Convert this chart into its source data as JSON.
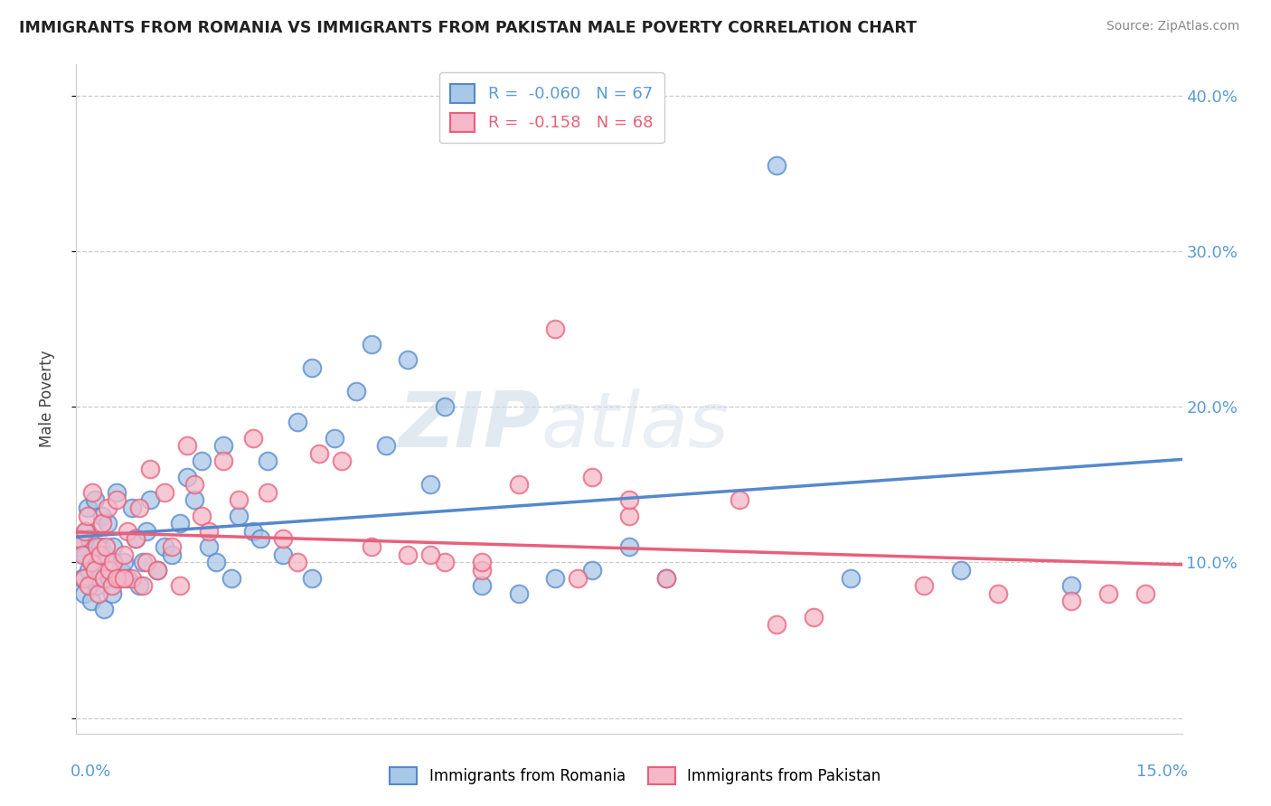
{
  "title": "IMMIGRANTS FROM ROMANIA VS IMMIGRANTS FROM PAKISTAN MALE POVERTY CORRELATION CHART",
  "source": "Source: ZipAtlas.com",
  "ylabel": "Male Poverty",
  "xlim": [
    0.0,
    15.0
  ],
  "ylim": [
    -1.0,
    42.0
  ],
  "yticks": [
    0.0,
    10.0,
    20.0,
    30.0,
    40.0
  ],
  "legend_romania": "Immigrants from Romania",
  "legend_pakistan": "Immigrants from Pakistan",
  "R_romania": -0.06,
  "N_romania": 67,
  "R_pakistan": -0.158,
  "N_pakistan": 68,
  "color_romania": "#a8c8e8",
  "color_pakistan": "#f4b8c8",
  "color_line_romania": "#5588cc",
  "color_line_pakistan": "#e8607a",
  "watermark_zip": "ZIP",
  "watermark_atlas": "atlas",
  "romania_x": [
    0.05,
    0.08,
    0.1,
    0.12,
    0.13,
    0.15,
    0.17,
    0.18,
    0.2,
    0.22,
    0.25,
    0.28,
    0.3,
    0.33,
    0.35,
    0.38,
    0.4,
    0.42,
    0.45,
    0.48,
    0.5,
    0.55,
    0.6,
    0.65,
    0.7,
    0.75,
    0.8,
    0.85,
    0.9,
    0.95,
    1.0,
    1.1,
    1.2,
    1.3,
    1.4,
    1.5,
    1.6,
    1.7,
    1.8,
    1.9,
    2.0,
    2.2,
    2.4,
    2.5,
    2.6,
    2.8,
    3.0,
    3.2,
    3.5,
    3.8,
    4.0,
    4.2,
    4.5,
    4.8,
    5.0,
    5.5,
    6.0,
    6.5,
    7.0,
    7.5,
    8.0,
    9.5,
    10.5,
    12.0,
    13.5,
    3.2,
    2.1
  ],
  "romania_y": [
    11.0,
    9.0,
    8.0,
    10.5,
    12.0,
    13.5,
    9.5,
    11.5,
    7.5,
    10.0,
    14.0,
    8.5,
    9.0,
    11.0,
    13.0,
    7.0,
    10.5,
    12.5,
    9.0,
    8.0,
    11.0,
    14.5,
    9.5,
    10.0,
    9.0,
    13.5,
    11.5,
    8.5,
    10.0,
    12.0,
    14.0,
    9.5,
    11.0,
    10.5,
    12.5,
    15.5,
    14.0,
    16.5,
    11.0,
    10.0,
    17.5,
    13.0,
    12.0,
    11.5,
    16.5,
    10.5,
    19.0,
    22.5,
    18.0,
    21.0,
    24.0,
    17.5,
    23.0,
    15.0,
    20.0,
    8.5,
    8.0,
    9.0,
    9.5,
    11.0,
    9.0,
    35.5,
    9.0,
    9.5,
    8.5,
    9.0,
    9.0
  ],
  "pakistan_x": [
    0.05,
    0.08,
    0.1,
    0.12,
    0.15,
    0.17,
    0.2,
    0.22,
    0.25,
    0.28,
    0.3,
    0.33,
    0.35,
    0.38,
    0.4,
    0.43,
    0.45,
    0.48,
    0.5,
    0.55,
    0.6,
    0.65,
    0.7,
    0.75,
    0.8,
    0.85,
    0.9,
    0.95,
    1.0,
    1.1,
    1.2,
    1.3,
    1.4,
    1.5,
    1.6,
    1.7,
    1.8,
    2.0,
    2.2,
    2.4,
    2.6,
    2.8,
    3.0,
    3.3,
    3.6,
    4.0,
    4.5,
    5.0,
    5.5,
    6.0,
    6.5,
    7.0,
    7.5,
    8.0,
    9.0,
    10.0,
    11.5,
    12.5,
    13.5,
    14.0,
    0.55,
    0.65,
    4.8,
    5.5,
    6.8,
    7.5,
    9.5,
    14.5
  ],
  "pakistan_y": [
    11.5,
    10.5,
    9.0,
    12.0,
    13.0,
    8.5,
    10.0,
    14.5,
    9.5,
    11.0,
    8.0,
    10.5,
    12.5,
    9.0,
    11.0,
    13.5,
    9.5,
    8.5,
    10.0,
    14.0,
    9.0,
    10.5,
    12.0,
    9.0,
    11.5,
    13.5,
    8.5,
    10.0,
    16.0,
    9.5,
    14.5,
    11.0,
    8.5,
    17.5,
    15.0,
    13.0,
    12.0,
    16.5,
    14.0,
    18.0,
    14.5,
    11.5,
    10.0,
    17.0,
    16.5,
    11.0,
    10.5,
    10.0,
    9.5,
    15.0,
    25.0,
    15.5,
    13.0,
    9.0,
    14.0,
    6.5,
    8.5,
    8.0,
    7.5,
    8.0,
    9.0,
    9.0,
    10.5,
    10.0,
    9.0,
    14.0,
    6.0,
    8.0
  ]
}
